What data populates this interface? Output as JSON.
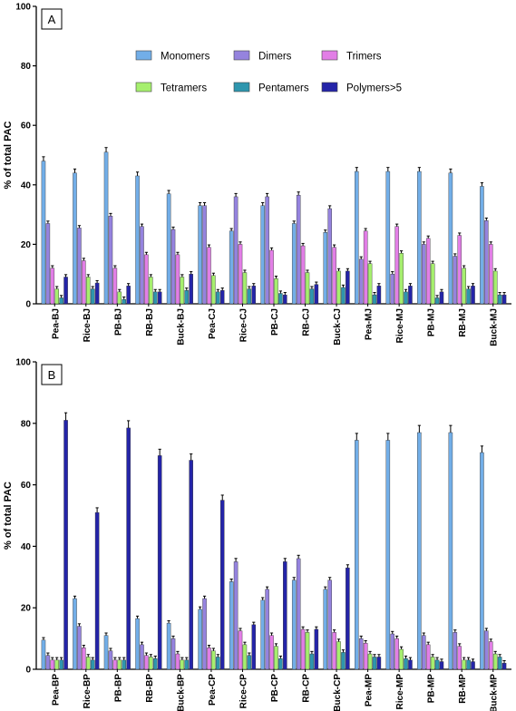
{
  "chart_data": [
    {
      "panel_label": "A",
      "type": "bar",
      "ylabel": "% of total PAC",
      "ylim": [
        0,
        100
      ],
      "yticks": [
        0,
        20,
        40,
        60,
        80,
        100
      ],
      "legend": "top-right",
      "categories": [
        "Pea-BJ",
        "Rice-BJ",
        "PB-BJ",
        "RB-BJ",
        "Buck-BJ",
        "Pea-CJ",
        "Rice-CJ",
        "PB-CJ",
        "RB-CJ",
        "Buck-CJ",
        "Pea-MJ",
        "Rice-MJ",
        "PB-MJ",
        "RB-MJ",
        "Buck-MJ"
      ],
      "series": [
        {
          "name": "Monomers",
          "color": "#72aee8",
          "values": [
            48,
            44,
            51,
            43,
            37,
            33,
            24.5,
            33,
            27,
            24,
            44.5,
            44.5,
            44.5,
            44,
            39.5
          ]
        },
        {
          "name": "Dimers",
          "color": "#9583de",
          "values": [
            27,
            25.5,
            29.5,
            26,
            25,
            33,
            36,
            36,
            36.5,
            32,
            15,
            10,
            20,
            16,
            28
          ]
        },
        {
          "name": "Trimers",
          "color": "#e27ee6",
          "values": [
            12,
            14.5,
            12,
            16.5,
            16.5,
            19,
            20,
            18,
            19.5,
            19,
            24.5,
            26,
            22,
            23,
            20
          ]
        },
        {
          "name": "Tetramers",
          "color": "#a6ef6e",
          "values": [
            5,
            9,
            4,
            9,
            9,
            9.5,
            10.5,
            8.5,
            10.5,
            11,
            13.5,
            17,
            13.5,
            12,
            11
          ]
        },
        {
          "name": "Pentamers",
          "color": "#2e96ae",
          "values": [
            2,
            5,
            1.5,
            4,
            4.5,
            4,
            5,
            3.5,
            5,
            5.5,
            3,
            4,
            2,
            5,
            3
          ]
        },
        {
          "name": "Polymers>5",
          "color": "#2424a8",
          "values": [
            9,
            7,
            6,
            4,
            10,
            4.5,
            6,
            3,
            6.5,
            11,
            6,
            6,
            4,
            6,
            3
          ]
        }
      ]
    },
    {
      "panel_label": "B",
      "type": "bar",
      "ylabel": "% of total PAC",
      "ylim": [
        0,
        100
      ],
      "yticks": [
        0,
        20,
        40,
        60,
        80,
        100
      ],
      "categories": [
        "Pea-BP",
        "Rice-BP",
        "PB-BP",
        "RB-BP",
        "Buck-BP",
        "Pea-CP",
        "Rice-CP",
        "PB-CP",
        "RB-CP",
        "Buck-CP",
        "Pea-MP",
        "Rice-MP",
        "PB-MP",
        "RB-MP",
        "Buck-MP"
      ],
      "series": [
        {
          "name": "Monomers",
          "color": "#72aee8",
          "values": [
            9.5,
            23,
            11,
            16.5,
            15,
            19.5,
            28.5,
            22.5,
            29,
            26,
            74.5,
            74.5,
            77,
            77,
            70.5
          ]
        },
        {
          "name": "Dimers",
          "color": "#9583de",
          "values": [
            4.5,
            14,
            6,
            8,
            10,
            23,
            35,
            26,
            36,
            29,
            10,
            11.5,
            11,
            12,
            12.5
          ]
        },
        {
          "name": "Trimers",
          "color": "#e27ee6",
          "values": [
            3,
            7,
            3,
            4.5,
            5,
            7,
            12.5,
            11,
            13,
            12,
            8.5,
            10,
            8,
            7.5,
            9
          ]
        },
        {
          "name": "Tetramers",
          "color": "#a6ef6e",
          "values": [
            3,
            4,
            3,
            4,
            3,
            6,
            8,
            7.5,
            12,
            9,
            5,
            6.5,
            4,
            3,
            5
          ]
        },
        {
          "name": "Pentamers",
          "color": "#2e96ae",
          "values": [
            3,
            3,
            3,
            3.5,
            3,
            4,
            4.5,
            3.5,
            5,
            5.5,
            4,
            3.5,
            3,
            3,
            4
          ]
        },
        {
          "name": "Polymers>5",
          "color": "#2424a8",
          "values": [
            81,
            51,
            78.5,
            69.5,
            68,
            55,
            14.5,
            35,
            13,
            33,
            4,
            3,
            2.5,
            2.5,
            2
          ]
        }
      ]
    }
  ]
}
